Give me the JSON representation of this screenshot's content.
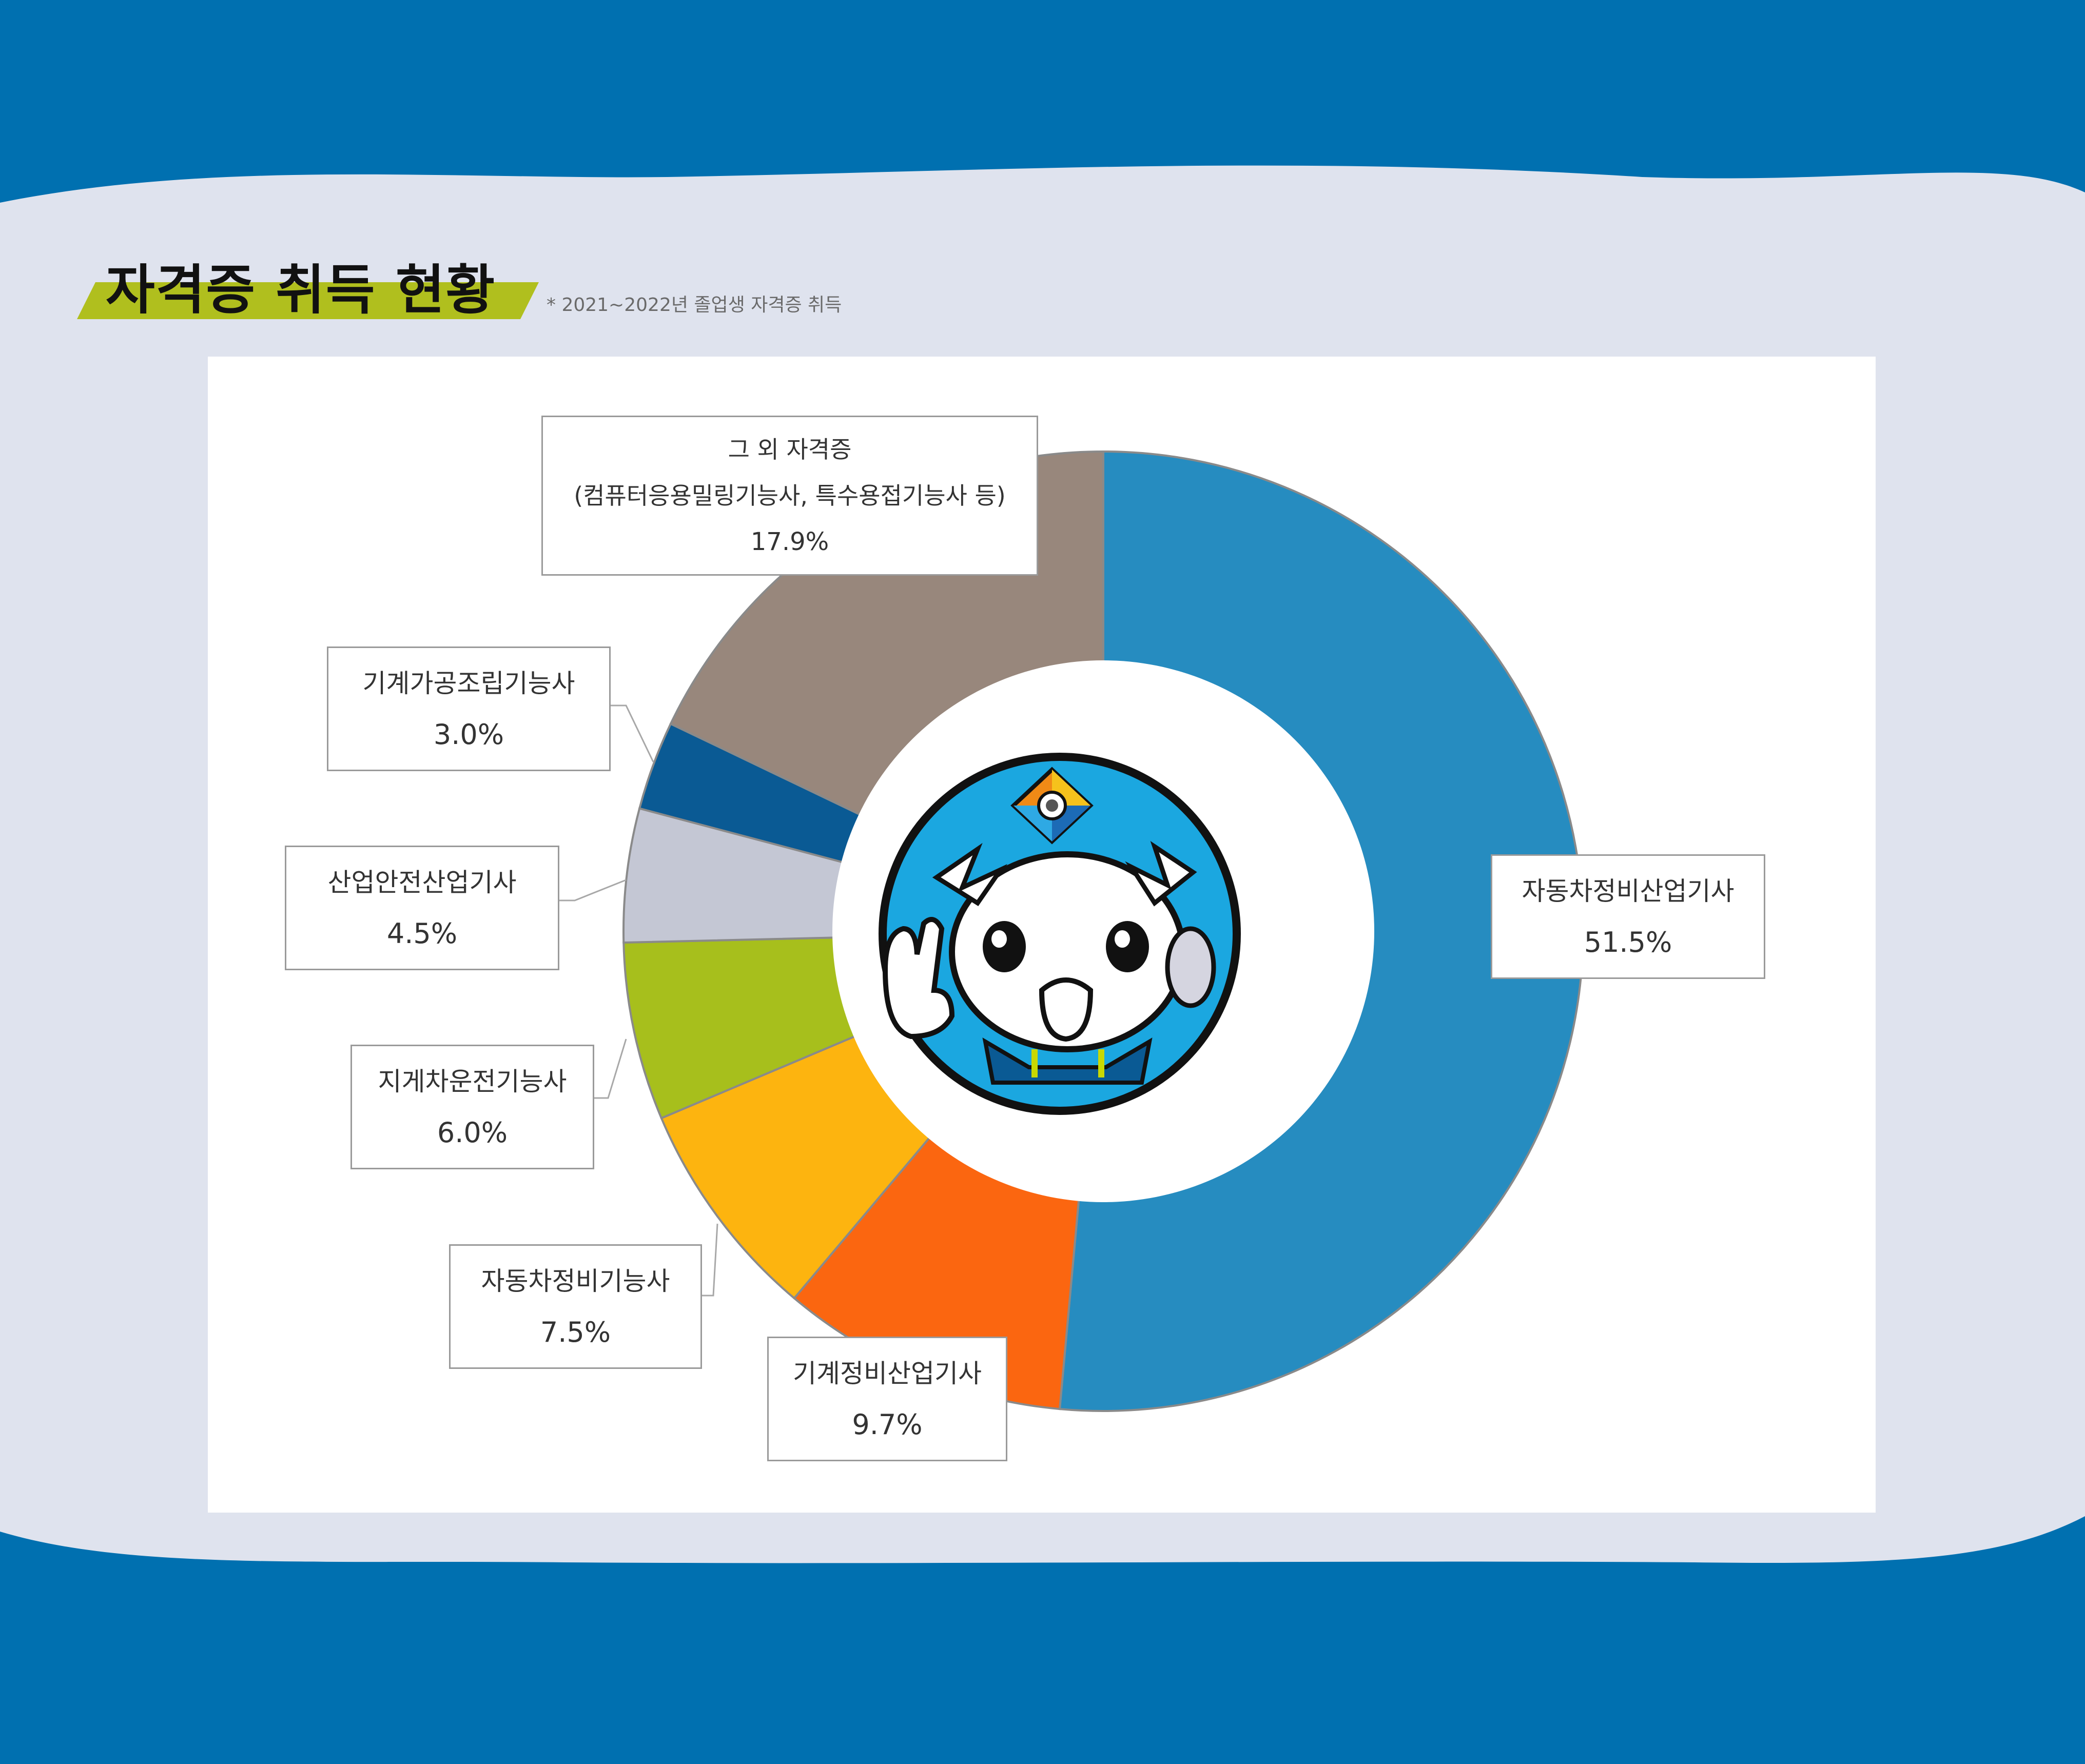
{
  "heading": {
    "title": "자격증 취득 현황",
    "note": "* 2021~2022년 졸업생 자격증 취득"
  },
  "colors": {
    "band": "#0070b0",
    "backdrop": "#dfe3ee",
    "accent": "#b0bf1e"
  },
  "chart_data": {
    "type": "pie",
    "title": "",
    "donut": true,
    "start": "12 o'clock, clockwise",
    "slices": [
      {
        "label": "자동차정비산업기사",
        "value": 51.5,
        "display": "51.5%",
        "color": "#268cc0"
      },
      {
        "label": "기계정비산업기사",
        "value": 9.7,
        "display": "9.7%",
        "color": "#fb6610"
      },
      {
        "label": "자동차정비기능사",
        "value": 7.5,
        "display": "7.5%",
        "color": "#fdb40f"
      },
      {
        "label": "지게차운전기능사",
        "value": 6.0,
        "display": "6.0%",
        "color": "#a7bf1c"
      },
      {
        "label": "산업안전산업기사",
        "value": 4.5,
        "display": "4.5%",
        "color": "#c4c7d4"
      },
      {
        "label": "기계가공조립기능사",
        "value": 3.0,
        "display": "3.0%",
        "color": "#0a5a94"
      },
      {
        "label": "그 외 자격증",
        "label2": "(컴퓨터응용밀링기능사, 특수용접기능사 등)",
        "value": 17.9,
        "display": "17.9%",
        "color": "#98877c"
      }
    ]
  }
}
